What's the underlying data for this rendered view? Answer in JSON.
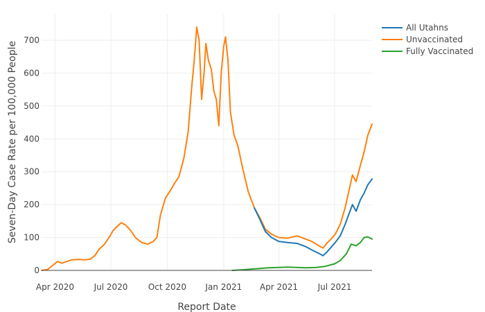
{
  "chart_data": {
    "type": "line",
    "xlabel": "Report Date",
    "ylabel": "Seven-Day Case Rate per 100,000 People",
    "x_range": [
      "2020-03-10",
      "2021-08-31"
    ],
    "ylim": [
      0,
      780
    ],
    "grid": true,
    "legend_position": "top-right",
    "x_ticks": [
      {
        "date": "2020-04-01",
        "label": "Apr 2020"
      },
      {
        "date": "2020-07-01",
        "label": "Jul 2020"
      },
      {
        "date": "2020-10-01",
        "label": "Oct 2020"
      },
      {
        "date": "2021-01-01",
        "label": "Jan 2021"
      },
      {
        "date": "2021-04-01",
        "label": "Apr 2021"
      },
      {
        "date": "2021-07-01",
        "label": "Jul 2021"
      }
    ],
    "y_ticks": [
      0,
      100,
      200,
      300,
      400,
      500,
      600,
      700
    ],
    "series": [
      {
        "name": "Unvaccinated",
        "color": "#ff7f0e",
        "points": [
          [
            "2020-03-10",
            0
          ],
          [
            "2020-03-20",
            3
          ],
          [
            "2020-03-28",
            15
          ],
          [
            "2020-04-05",
            27
          ],
          [
            "2020-04-12",
            22
          ],
          [
            "2020-04-20",
            27
          ],
          [
            "2020-04-28",
            32
          ],
          [
            "2020-05-10",
            33
          ],
          [
            "2020-05-20",
            32
          ],
          [
            "2020-05-28",
            34
          ],
          [
            "2020-06-05",
            45
          ],
          [
            "2020-06-12",
            65
          ],
          [
            "2020-06-20",
            78
          ],
          [
            "2020-06-28",
            100
          ],
          [
            "2020-07-05",
            122
          ],
          [
            "2020-07-12",
            135
          ],
          [
            "2020-07-18",
            145
          ],
          [
            "2020-07-25",
            138
          ],
          [
            "2020-08-02",
            122
          ],
          [
            "2020-08-10",
            100
          ],
          [
            "2020-08-20",
            85
          ],
          [
            "2020-08-30",
            80
          ],
          [
            "2020-09-08",
            88
          ],
          [
            "2020-09-14",
            100
          ],
          [
            "2020-09-20",
            170
          ],
          [
            "2020-09-28",
            220
          ],
          [
            "2020-10-05",
            240
          ],
          [
            "2020-10-12",
            262
          ],
          [
            "2020-10-20",
            285
          ],
          [
            "2020-10-28",
            340
          ],
          [
            "2020-11-04",
            420
          ],
          [
            "2020-11-10",
            560
          ],
          [
            "2020-11-14",
            640
          ],
          [
            "2020-11-18",
            740
          ],
          [
            "2020-11-22",
            700
          ],
          [
            "2020-11-26",
            520
          ],
          [
            "2020-11-30",
            600
          ],
          [
            "2020-12-03",
            690
          ],
          [
            "2020-12-07",
            640
          ],
          [
            "2020-12-12",
            610
          ],
          [
            "2020-12-16",
            545
          ],
          [
            "2020-12-20",
            520
          ],
          [
            "2020-12-24",
            440
          ],
          [
            "2020-12-28",
            600
          ],
          [
            "2021-01-01",
            680
          ],
          [
            "2021-01-04",
            710
          ],
          [
            "2021-01-08",
            640
          ],
          [
            "2021-01-12",
            480
          ],
          [
            "2021-01-18",
            410
          ],
          [
            "2021-01-24",
            380
          ],
          [
            "2021-02-01",
            310
          ],
          [
            "2021-02-10",
            240
          ],
          [
            "2021-02-20",
            190
          ],
          [
            "2021-03-01",
            160
          ],
          [
            "2021-03-10",
            125
          ],
          [
            "2021-03-20",
            110
          ],
          [
            "2021-04-01",
            100
          ],
          [
            "2021-04-15",
            98
          ],
          [
            "2021-05-01",
            105
          ],
          [
            "2021-05-15",
            95
          ],
          [
            "2021-05-25",
            88
          ],
          [
            "2021-06-05",
            75
          ],
          [
            "2021-06-12",
            68
          ],
          [
            "2021-06-18",
            82
          ],
          [
            "2021-06-25",
            95
          ],
          [
            "2021-07-02",
            110
          ],
          [
            "2021-07-10",
            140
          ],
          [
            "2021-07-18",
            190
          ],
          [
            "2021-07-24",
            240
          ],
          [
            "2021-07-30",
            290
          ],
          [
            "2021-08-05",
            270
          ],
          [
            "2021-08-12",
            320
          ],
          [
            "2021-08-18",
            360
          ],
          [
            "2021-08-24",
            410
          ],
          [
            "2021-08-31",
            445
          ]
        ]
      },
      {
        "name": "All Utahns",
        "color": "#1f77b4",
        "points": [
          [
            "2021-02-20",
            190
          ],
          [
            "2021-03-01",
            155
          ],
          [
            "2021-03-10",
            118
          ],
          [
            "2021-03-20",
            100
          ],
          [
            "2021-04-01",
            88
          ],
          [
            "2021-04-15",
            85
          ],
          [
            "2021-05-01",
            82
          ],
          [
            "2021-05-15",
            72
          ],
          [
            "2021-05-25",
            62
          ],
          [
            "2021-06-05",
            52
          ],
          [
            "2021-06-12",
            45
          ],
          [
            "2021-06-18",
            55
          ],
          [
            "2021-06-25",
            70
          ],
          [
            "2021-07-02",
            85
          ],
          [
            "2021-07-10",
            105
          ],
          [
            "2021-07-18",
            140
          ],
          [
            "2021-07-24",
            170
          ],
          [
            "2021-07-30",
            200
          ],
          [
            "2021-08-05",
            180
          ],
          [
            "2021-08-12",
            215
          ],
          [
            "2021-08-18",
            235
          ],
          [
            "2021-08-24",
            260
          ],
          [
            "2021-08-31",
            278
          ]
        ]
      },
      {
        "name": "Fully Vaccinated",
        "color": "#2ca02c",
        "points": [
          [
            "2021-01-15",
            0
          ],
          [
            "2021-02-01",
            2
          ],
          [
            "2021-02-15",
            4
          ],
          [
            "2021-03-01",
            6
          ],
          [
            "2021-03-15",
            8
          ],
          [
            "2021-04-01",
            9
          ],
          [
            "2021-04-15",
            10
          ],
          [
            "2021-05-01",
            9
          ],
          [
            "2021-05-15",
            8
          ],
          [
            "2021-06-01",
            9
          ],
          [
            "2021-06-15",
            12
          ],
          [
            "2021-07-01",
            20
          ],
          [
            "2021-07-10",
            30
          ],
          [
            "2021-07-20",
            50
          ],
          [
            "2021-07-28",
            80
          ],
          [
            "2021-08-05",
            75
          ],
          [
            "2021-08-12",
            85
          ],
          [
            "2021-08-18",
            100
          ],
          [
            "2021-08-24",
            102
          ],
          [
            "2021-08-31",
            95
          ]
        ]
      }
    ],
    "legend": [
      {
        "name": "All Utahns",
        "color": "#1f77b4"
      },
      {
        "name": "Unvaccinated",
        "color": "#ff7f0e"
      },
      {
        "name": "Fully Vaccinated",
        "color": "#2ca02c"
      }
    ]
  }
}
